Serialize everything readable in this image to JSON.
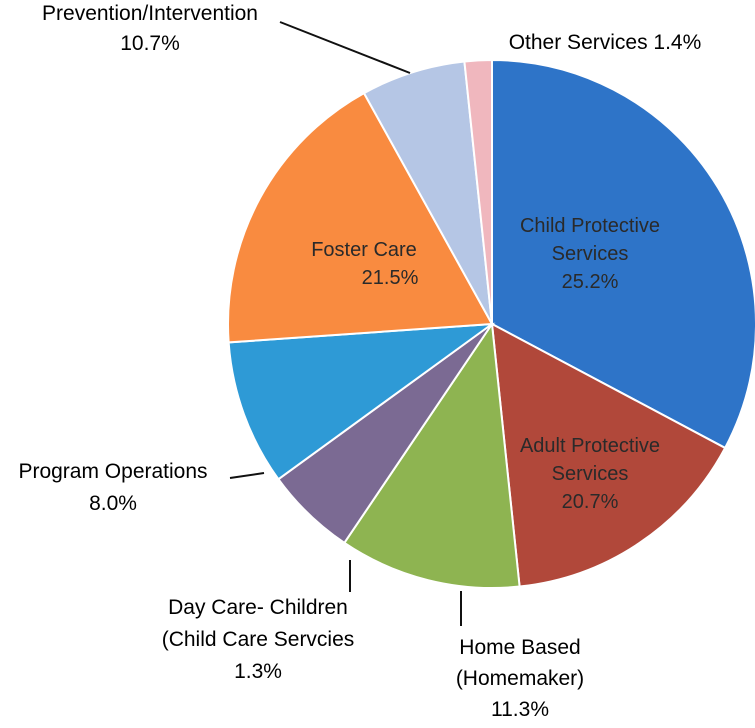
{
  "chart_data": {
    "type": "pie",
    "title": "",
    "start": "top, clockwise",
    "slices": [
      {
        "label_lines": [
          "Child Protective",
          "Services"
        ],
        "value_label": "25.2%",
        "value": 25.2,
        "color": "#2e74c8"
      },
      {
        "label_lines": [
          "Adult Protective",
          "Services"
        ],
        "value_label": "20.7%",
        "value": 20.7,
        "color": "#b1483a"
      },
      {
        "label_lines": [
          "Home Based",
          "(Homemaker)"
        ],
        "value_label": "11.3%",
        "value": 11.3,
        "color": "#8eb451"
      },
      {
        "label_lines": [
          "Day Care- Children",
          "(Child Care Servcies"
        ],
        "value_label": "1.3%",
        "value": 1.3,
        "color": "#7b6a93"
      },
      {
        "label_lines": [
          "Program Operations"
        ],
        "value_label": "8.0%",
        "value": 8.0,
        "color": "#2e9ad6"
      },
      {
        "label_lines": [
          "Foster Care"
        ],
        "value_label": "21.5%",
        "value": 21.5,
        "color": "#f98b40"
      },
      {
        "label_lines": [
          "Prevention/Intervention"
        ],
        "value_label": "10.7%",
        "value": 10.7,
        "color": "#b5c6e5"
      },
      {
        "label_lines": [
          "Other Services"
        ],
        "value_label": "1.4%",
        "value": 1.4,
        "color": "#f0b7be"
      }
    ],
    "outline_color": "#ffffff"
  }
}
